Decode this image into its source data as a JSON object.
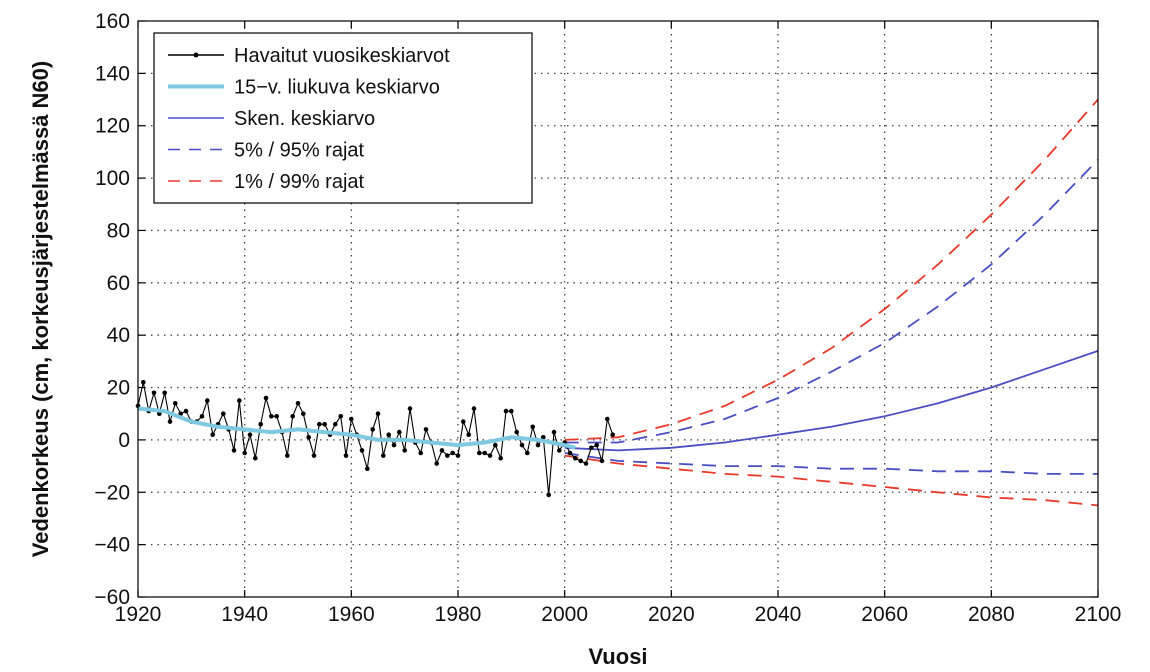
{
  "chart_data": {
    "type": "line",
    "title": "",
    "xlabel": "Vuosi",
    "ylabel": "Vedenkorkeus (cm, korkeusjärjestelmässä N60)",
    "xlim": [
      1920,
      2100
    ],
    "ylim": [
      -60,
      160
    ],
    "x_ticks": [
      1920,
      1940,
      1960,
      1980,
      2000,
      2020,
      2040,
      2060,
      2080,
      2100
    ],
    "y_ticks": [
      -60,
      -40,
      -20,
      0,
      20,
      40,
      60,
      80,
      100,
      120,
      140,
      160
    ],
    "grid": true,
    "legend_position": "top-left",
    "series": [
      {
        "name": "Havaitut vuosikeskiarvot",
        "color": "#000000",
        "style": "line-with-dots",
        "x": [
          1920,
          1921,
          1922,
          1923,
          1924,
          1925,
          1926,
          1927,
          1928,
          1929,
          1930,
          1931,
          1932,
          1933,
          1934,
          1935,
          1936,
          1937,
          1938,
          1939,
          1940,
          1941,
          1942,
          1943,
          1944,
          1945,
          1946,
          1947,
          1948,
          1949,
          1950,
          1951,
          1952,
          1953,
          1954,
          1955,
          1956,
          1957,
          1958,
          1959,
          1960,
          1961,
          1962,
          1963,
          1964,
          1965,
          1966,
          1967,
          1968,
          1969,
          1970,
          1971,
          1972,
          1973,
          1974,
          1975,
          1976,
          1977,
          1978,
          1979,
          1980,
          1981,
          1982,
          1983,
          1984,
          1985,
          1986,
          1987,
          1988,
          1989,
          1990,
          1991,
          1992,
          1993,
          1994,
          1995,
          1996,
          1997,
          1998,
          1999,
          2000,
          2001,
          2002,
          2003,
          2004,
          2005,
          2006,
          2007,
          2008,
          2009
        ],
        "y": [
          13,
          22,
          11,
          18,
          10,
          18,
          7,
          14,
          10,
          11,
          7,
          7,
          9,
          15,
          2,
          6,
          10,
          4,
          -4,
          15,
          -5,
          2,
          -7,
          6,
          16,
          9,
          9,
          3,
          -6,
          9,
          14,
          10,
          1,
          -6,
          6,
          6,
          2,
          6,
          9,
          -6,
          8,
          2,
          -4,
          -11,
          4,
          10,
          -6,
          2,
          -2,
          3,
          -4,
          12,
          -1,
          -5,
          4,
          -1,
          -9,
          -4,
          -6,
          -5,
          -6,
          7,
          2,
          12,
          -5,
          -5,
          -6,
          -2,
          -7,
          11,
          11,
          3,
          -2,
          -5,
          5,
          -2,
          1,
          -21,
          3,
          -4,
          -1,
          -5,
          -7,
          -8,
          -9,
          -3,
          -2,
          -8,
          8,
          2
        ]
      },
      {
        "name": "15−v. liukuva keskiarvo",
        "color": "#7ec9e0",
        "style": "line",
        "x": [
          1920,
          1925,
          1930,
          1935,
          1940,
          1945,
          1950,
          1955,
          1960,
          1965,
          1970,
          1975,
          1980,
          1985,
          1990,
          1995,
          2000,
          2002
        ],
        "y": [
          12,
          11,
          7,
          5,
          4,
          3,
          4,
          3,
          2,
          0,
          0,
          -1,
          -2,
          -1,
          1,
          0,
          -2,
          -3
        ]
      },
      {
        "name": "Sken. keskiarvo",
        "color": "#4a4ec2",
        "style": "line",
        "x": [
          2000,
          2010,
          2020,
          2030,
          2040,
          2050,
          2060,
          2070,
          2080,
          2090,
          2100
        ],
        "y": [
          -3,
          -4,
          -3,
          -1,
          2,
          5,
          9,
          14,
          20,
          27,
          34
        ]
      },
      {
        "name": "5% / 95% rajat",
        "color": "#4a4ec2",
        "style": "dashed",
        "upper": {
          "x": [
            2000,
            2010,
            2020,
            2030,
            2040,
            2050,
            2060,
            2070,
            2080,
            2090,
            2100
          ],
          "y": [
            -1,
            -1,
            3,
            8,
            16,
            26,
            37,
            51,
            67,
            86,
            107
          ]
        },
        "lower": {
          "x": [
            2000,
            2010,
            2020,
            2030,
            2040,
            2050,
            2060,
            2070,
            2080,
            2090,
            2100
          ],
          "y": [
            -5,
            -8,
            -9,
            -10,
            -10,
            -11,
            -11,
            -12,
            -12,
            -13,
            -13
          ]
        }
      },
      {
        "name": "1% / 99% rajat",
        "color": "#e83a2a",
        "style": "dashed",
        "upper": {
          "x": [
            2000,
            2010,
            2020,
            2030,
            2040,
            2050,
            2060,
            2070,
            2080,
            2090,
            2100
          ],
          "y": [
            0,
            1,
            6,
            13,
            23,
            35,
            50,
            67,
            86,
            107,
            130
          ]
        },
        "lower": {
          "x": [
            2000,
            2010,
            2020,
            2030,
            2040,
            2050,
            2060,
            2070,
            2080,
            2090,
            2100
          ],
          "y": [
            -6,
            -9,
            -11,
            -13,
            -14,
            -16,
            -18,
            -20,
            -22,
            -23,
            -25
          ]
        }
      }
    ],
    "legend": [
      {
        "label": "Havaitut vuosikeskiarvot",
        "color": "#000000",
        "style": "line-with-dots"
      },
      {
        "label": "15−v. liukuva keskiarvo",
        "color": "#7ec9e0",
        "style": "line"
      },
      {
        "label": "Sken. keskiarvo",
        "color": "#4a4ec2",
        "style": "line"
      },
      {
        "label": "5% / 95% rajat",
        "color": "#4a4ec2",
        "style": "dashed"
      },
      {
        "label": "1% / 99% rajat",
        "color": "#e83a2a",
        "style": "dashed"
      }
    ]
  }
}
